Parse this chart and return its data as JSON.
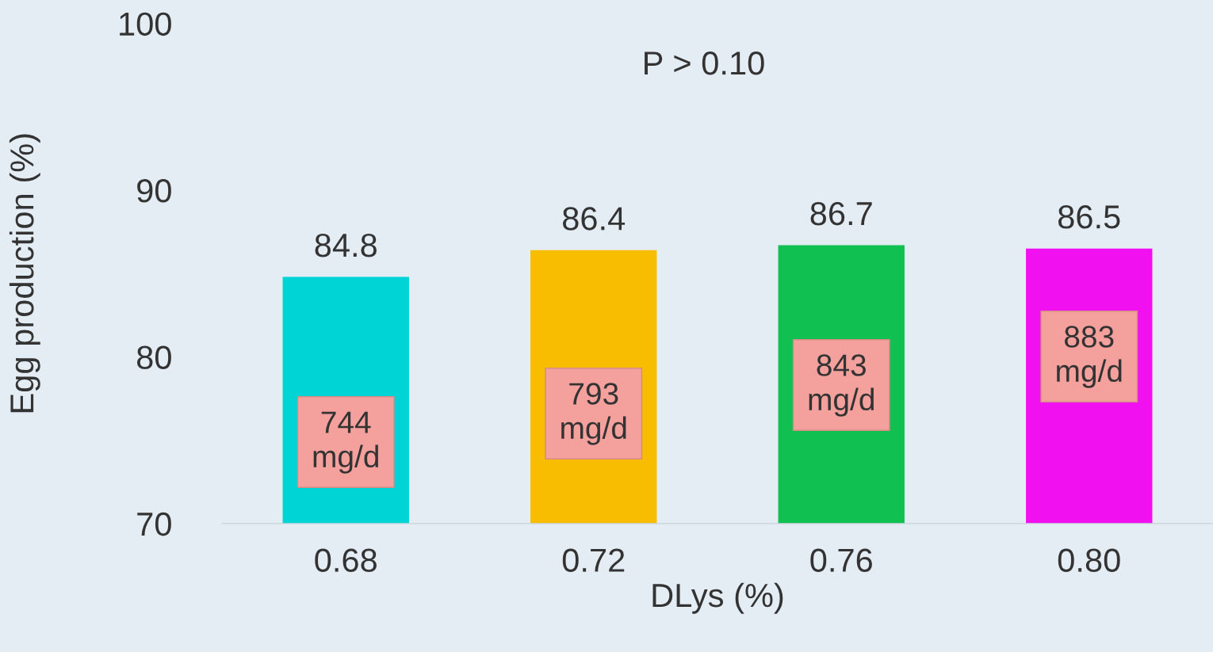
{
  "chart_data": {
    "type": "bar",
    "xlabel": "DLys (%)",
    "ylabel": "Egg production (%)",
    "categories": [
      "0.68",
      "0.72",
      "0.76",
      "0.80"
    ],
    "values": [
      84.8,
      86.4,
      86.7,
      86.5
    ],
    "colors": [
      "#00d4d4",
      "#f8bc00",
      "#10c050",
      "#f010f0"
    ],
    "ylim": [
      70,
      100
    ],
    "yticks": [
      70,
      80,
      90,
      100
    ],
    "data_labels": true,
    "grid": false,
    "legend": false,
    "annotations": [
      "P > 0.10",
      "744\nmg/d",
      "793\nmg/d",
      "843\nmg/d",
      "883\nmg/d"
    ]
  }
}
